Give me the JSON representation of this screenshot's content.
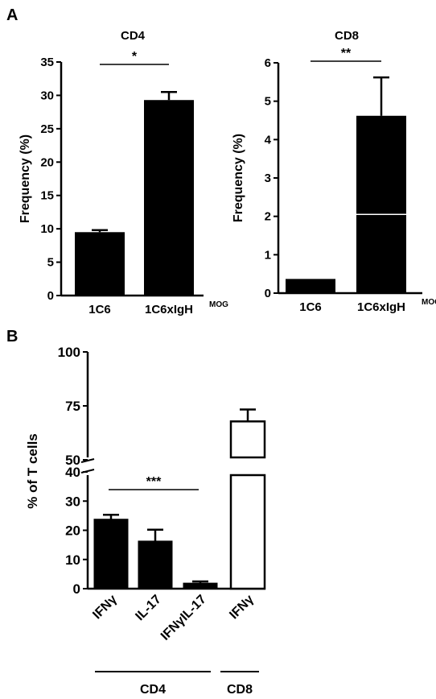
{
  "panels": {
    "a": "A",
    "b": "B"
  },
  "chart_data": [
    {
      "type": "bar",
      "title": "CD4",
      "ylabel": "Frequency (%)",
      "categories": [
        "1C6",
        "1C6xIgH"
      ],
      "category_superscripts": [
        "",
        "MOG"
      ],
      "values": [
        9.5,
        29.3
      ],
      "errors": [
        0.3,
        1.2
      ],
      "ylim": [
        0,
        35
      ],
      "yticks": [
        0,
        5,
        10,
        15,
        20,
        25,
        30,
        35
      ],
      "significance": "*",
      "bar_fill": "#000000"
    },
    {
      "type": "bar",
      "title": "CD8",
      "ylabel": "Frequency (%)",
      "categories": [
        "1C6",
        "1C6xIgH"
      ],
      "category_superscripts": [
        "",
        "MOG"
      ],
      "values": [
        0.35,
        4.62
      ],
      "errors": [
        0.0,
        1.0
      ],
      "ylim": [
        0,
        6
      ],
      "yticks": [
        0,
        1,
        2,
        3,
        4,
        5,
        6
      ],
      "significance": "**",
      "bar_fill": "#000000"
    },
    {
      "type": "bar",
      "title": "",
      "ylabel": "% of T cells",
      "categories": [
        "IFNγ",
        "IL-17",
        "IFNγIL-17",
        "IFNγ"
      ],
      "values": [
        23.8,
        16.3,
        1.9,
        67.8
      ],
      "errors": [
        1.5,
        3.9,
        0.6,
        5.5
      ],
      "groups": [
        {
          "label": "CD4",
          "members": [
            0,
            1,
            2
          ]
        },
        {
          "label": "CD8",
          "members": [
            3
          ]
        }
      ],
      "bar_fills": [
        "#000000",
        "#000000",
        "#000000",
        "#ffffff"
      ],
      "yaxis_break": [
        40,
        50
      ],
      "ylim": [
        0,
        100
      ],
      "yticks": [
        0,
        10,
        20,
        30,
        40,
        50,
        75,
        100
      ],
      "significance": "***"
    }
  ]
}
